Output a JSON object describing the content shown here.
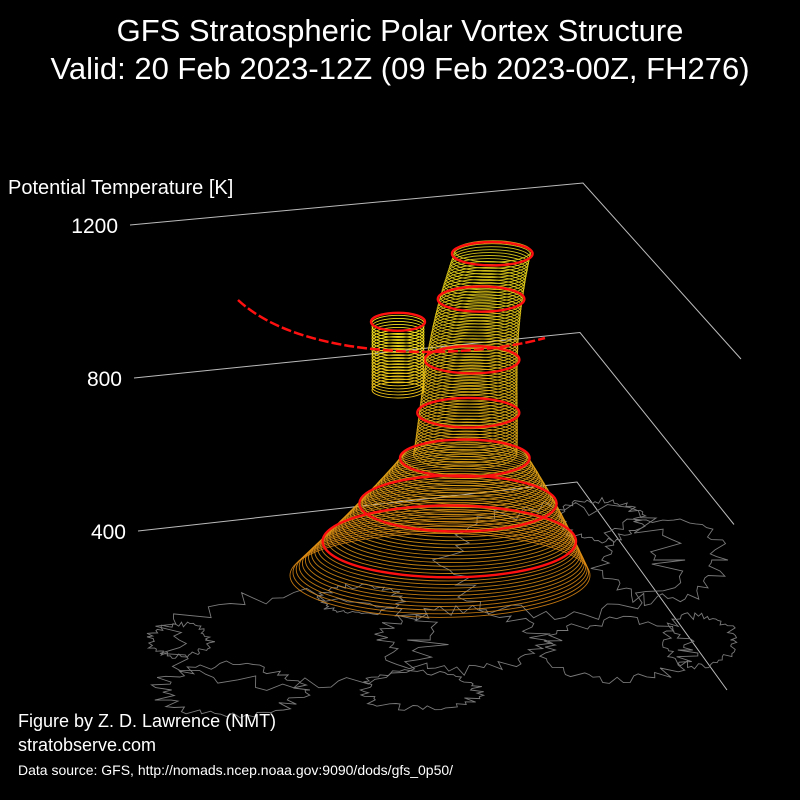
{
  "title": {
    "line1": "GFS Stratospheric Polar Vortex Structure",
    "line2": "Valid: 20 Feb 2023-12Z  (09 Feb 2023-00Z, FH276)"
  },
  "credits": {
    "author": "Figure by Z. D. Lawrence (NMT)",
    "site": "stratobserve.com",
    "source": "Data source: GFS, http://nomads.ncep.noaa.gov:9090/dods/gfs_0p50/"
  },
  "colors": {
    "background": "#000000",
    "axis": "#bbbbbb",
    "coastline": "#7a7a7a",
    "vortex_low": "#e08a14",
    "vortex_high": "#f4e41c",
    "vortex_edge": "#ff1010"
  },
  "chart_data": {
    "type": "3d-isosurface",
    "ylabel": "Potential Temperature [K]",
    "z_ticks": [
      400,
      800,
      1200
    ],
    "grid": true,
    "base_map": "coastlines",
    "vortex_lobes": [
      {
        "name": "",
        "theta_min": 330,
        "theta_max": 1190
      },
      {
        "name": "",
        "theta_min": 820,
        "theta_max": 1000
      }
    ]
  }
}
